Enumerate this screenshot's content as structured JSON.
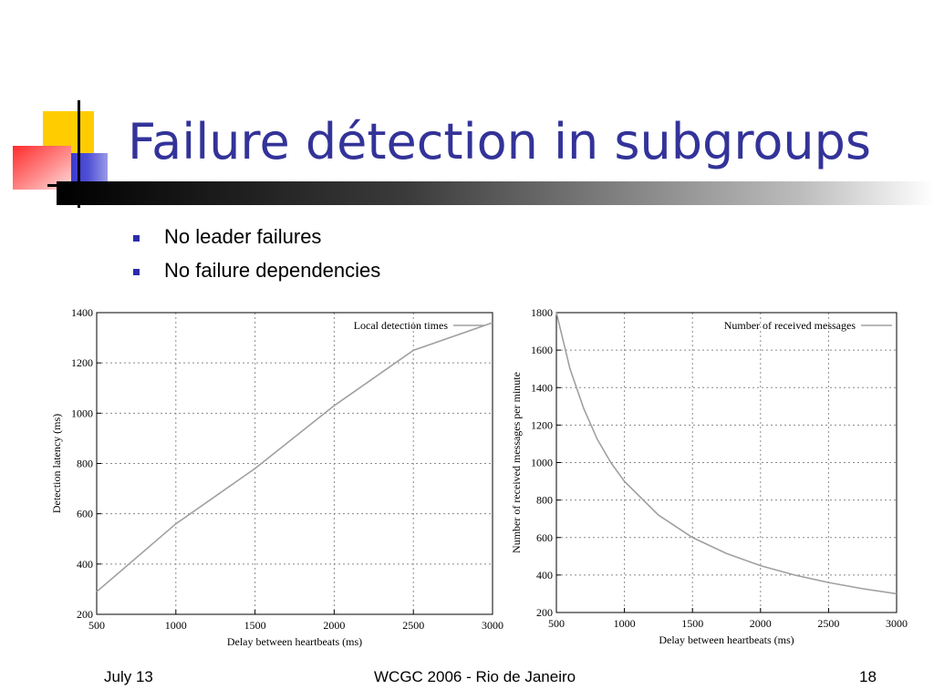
{
  "slide": {
    "title": "Failure détection in subgroups",
    "bullets": [
      "No leader failures",
      "No failure dependencies"
    ],
    "footer": {
      "left": "July 13",
      "center": "WCGC 2006 - Rio de Janeiro",
      "right": "18"
    },
    "colors": {
      "title": "#333399",
      "bullet": "#2b2bab",
      "deco_yellow": "#ffcc00",
      "deco_blue": "#3333cc",
      "deco_red": "#ff3333",
      "curve": "#a0a0a0"
    }
  },
  "chart_data": [
    {
      "type": "line",
      "title": "",
      "xlabel": "Delay between heartbeats (ms)",
      "ylabel": "Detection latency (ms)",
      "xlim": [
        500,
        3000
      ],
      "ylim": [
        200,
        1400
      ],
      "xticks": [
        500,
        1000,
        1500,
        2000,
        2500,
        3000
      ],
      "yticks": [
        200,
        400,
        600,
        800,
        1000,
        1200,
        1400
      ],
      "grid": true,
      "legend": "top-right",
      "series": [
        {
          "name": "Local detection times",
          "x": [
            500,
            1000,
            1500,
            2000,
            2500,
            3000
          ],
          "y": [
            290,
            560,
            780,
            1030,
            1250,
            1360
          ]
        }
      ]
    },
    {
      "type": "line",
      "title": "",
      "xlabel": "Delay between heartbeats (ms)",
      "ylabel": "Number of received messages per minute",
      "xlim": [
        500,
        3000
      ],
      "ylim": [
        200,
        1800
      ],
      "xticks": [
        500,
        1000,
        1500,
        2000,
        2500,
        3000
      ],
      "yticks": [
        200,
        400,
        600,
        800,
        1000,
        1200,
        1400,
        1600,
        1800
      ],
      "grid": true,
      "legend": "top-right",
      "series": [
        {
          "name": "Number of received messages",
          "x": [
            500,
            600,
            700,
            800,
            900,
            1000,
            1250,
            1500,
            1750,
            2000,
            2250,
            2500,
            2750,
            3000
          ],
          "y": [
            1800,
            1500,
            1290,
            1125,
            1000,
            900,
            720,
            600,
            515,
            450,
            400,
            360,
            327,
            300
          ]
        }
      ]
    }
  ]
}
